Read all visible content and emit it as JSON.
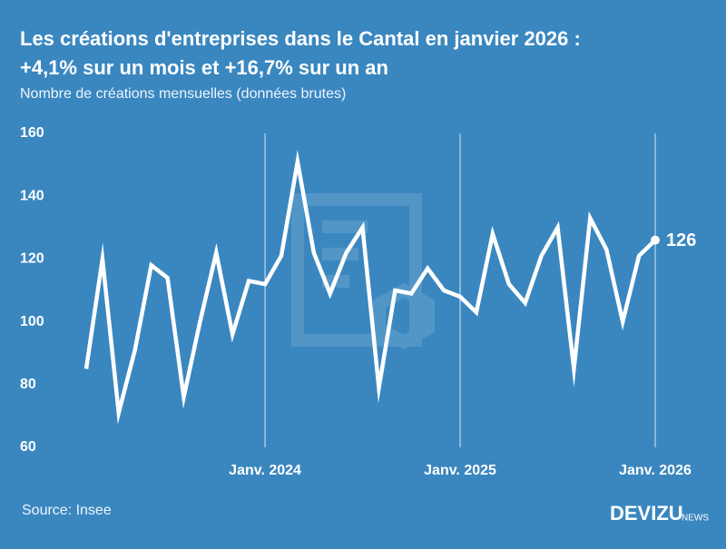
{
  "chart_data": {
    "type": "line",
    "title": [
      "Les créations d'entreprises dans le Cantal en janvier 2026 :",
      "+4,1% sur un mois et +16,7% sur un an"
    ],
    "subtitle": "Nombre de créations mensuelles (données brutes)",
    "source": "Source: Insee",
    "brand": "DEVIZU",
    "brand_suffix": "NEWS",
    "categories": [
      null,
      null,
      null,
      null,
      null,
      null,
      null,
      null,
      null,
      null,
      null,
      "Janv. 2024",
      null,
      null,
      null,
      null,
      null,
      null,
      null,
      null,
      null,
      null,
      null,
      "Janv. 2025",
      null,
      null,
      null,
      null,
      null,
      null,
      null,
      null,
      null,
      null,
      null,
      "Janv. 2026"
    ],
    "series": [
      {
        "name": "Créations",
        "color": "#ffffff",
        "values": [
          85,
          120,
          71,
          91,
          118,
          114,
          76,
          100,
          122,
          96,
          113,
          112,
          121,
          151,
          122,
          109,
          122,
          130,
          79,
          110,
          109,
          117,
          110,
          108,
          103,
          128,
          112,
          106,
          121,
          130,
          85,
          133,
          123,
          100,
          121,
          126
        ]
      }
    ],
    "ylim": [
      60,
      160
    ],
    "yticks": [
      60,
      80,
      100,
      120,
      140,
      160
    ],
    "grid": false
  }
}
